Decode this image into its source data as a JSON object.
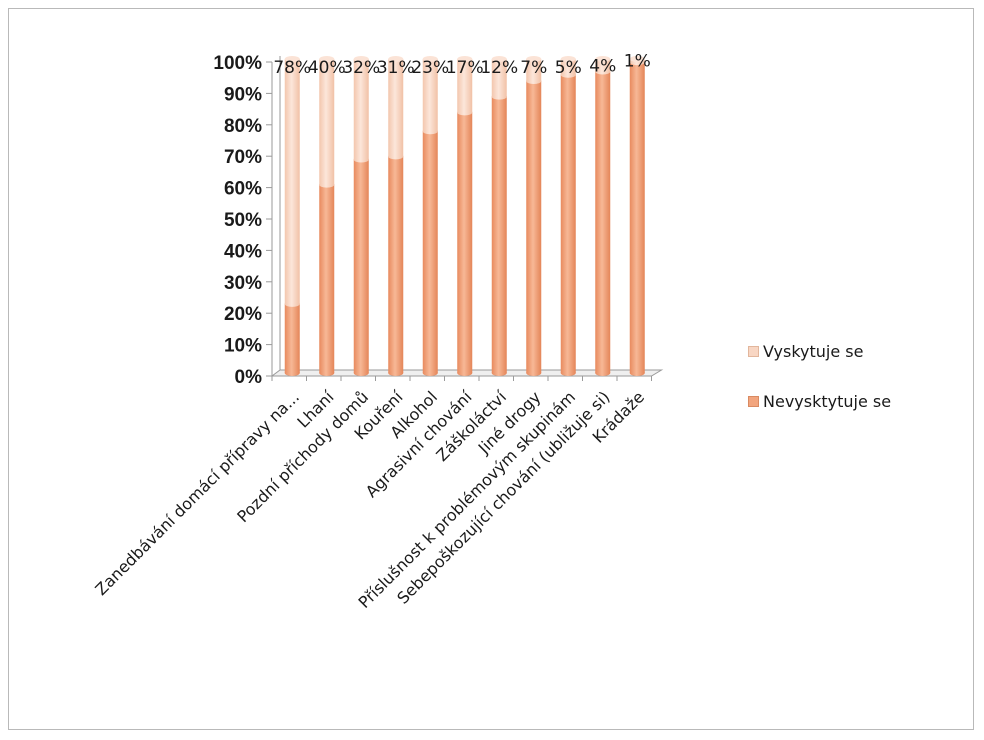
{
  "chart_data": {
    "type": "bar",
    "stacked": true,
    "percent_stacked": true,
    "categories": [
      "Zanedbávání domácí přípravy na...",
      "Lhaní",
      "Pozdní příchody domů",
      "Kouření",
      "Alkohol",
      "Agrasivní chování",
      "Záškoláctví",
      "Jiné drogy",
      "Příslušnost k problémovým skupinám",
      "Sebepoškozující chování (ubližuje si)",
      "Krádaže"
    ],
    "series": [
      {
        "name": "Nevysktytuje se",
        "values": [
          22,
          60,
          68,
          69,
          77,
          83,
          88,
          93,
          95,
          96,
          99
        ],
        "color": "#f2a57e"
      },
      {
        "name": "Vyskytuje se",
        "values": [
          78,
          40,
          32,
          31,
          23,
          17,
          12,
          7,
          5,
          4,
          1
        ],
        "color": "#f8d6c3"
      }
    ],
    "data_labels": [
      "78%",
      "40%",
      "32%",
      "31%",
      "23%",
      "17%",
      "12%",
      "7%",
      "5%",
      "4%",
      "1%"
    ],
    "yticks": [
      "0%",
      "10%",
      "20%",
      "30%",
      "40%",
      "50%",
      "60%",
      "70%",
      "80%",
      "90%",
      "100%"
    ],
    "ylim": [
      0,
      100
    ],
    "grid": false,
    "legend_position": "right",
    "legend": [
      "Vyskytuje se",
      "Nevysktytuje se"
    ]
  }
}
